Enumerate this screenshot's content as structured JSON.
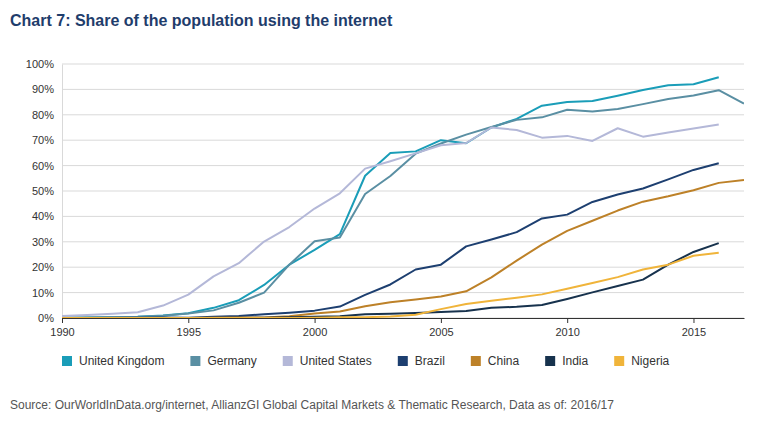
{
  "chart_data": {
    "type": "line",
    "title": "Chart 7: Share of the population using the internet",
    "source": "Source: OurWorldInData.org/internet, AllianzGI Global Capital Markets & Thematic Research, Data as of: 2016/17",
    "x": [
      1990,
      1991,
      1992,
      1993,
      1994,
      1995,
      1996,
      1997,
      1998,
      1999,
      2000,
      2001,
      2002,
      2003,
      2004,
      2005,
      2006,
      2007,
      2008,
      2009,
      2010,
      2011,
      2012,
      2013,
      2014,
      2015,
      2016,
      2017
    ],
    "xlim": [
      1990,
      2017
    ],
    "xticks": [
      1990,
      1995,
      2000,
      2005,
      2010,
      2015
    ],
    "ylim": [
      0,
      100
    ],
    "yticks": [
      {
        "value": 0,
        "label": "0%"
      },
      {
        "value": 10,
        "label": "10%"
      },
      {
        "value": 20,
        "label": "20%"
      },
      {
        "value": 30,
        "label": "30%"
      },
      {
        "value": 40,
        "label": "40%"
      },
      {
        "value": 50,
        "label": "50%"
      },
      {
        "value": 60,
        "label": "60%"
      },
      {
        "value": 70,
        "label": "70%"
      },
      {
        "value": 80,
        "label": "80%"
      },
      {
        "value": 90,
        "label": "90%"
      },
      {
        "value": 100,
        "label": "100%"
      }
    ],
    "grid": true,
    "legend": "bottom",
    "series": [
      {
        "name": "United Kingdom",
        "color": "#1a9db8",
        "values": [
          0.1,
          0.2,
          0.3,
          0.5,
          1,
          1.9,
          4,
          7,
          13,
          21,
          26.8,
          33,
          56,
          65,
          65.6,
          70,
          68.8,
          75,
          78.4,
          83.6,
          85,
          85.4,
          87.5,
          89.8,
          91.6,
          92,
          94.8,
          null
        ]
      },
      {
        "name": "Germany",
        "color": "#5a8fa3",
        "values": [
          0.1,
          0.2,
          0.4,
          0.5,
          0.9,
          1.8,
          3,
          6,
          10,
          21,
          30.2,
          31.7,
          48.8,
          55.9,
          64.7,
          68.7,
          72.2,
          75.2,
          78,
          79,
          82,
          81.3,
          82.3,
          84.2,
          86.2,
          87.6,
          89.7,
          84.4
        ]
      },
      {
        "name": "United States",
        "color": "#b4b8d8",
        "values": [
          0.8,
          1.2,
          1.7,
          2.3,
          4.9,
          9.2,
          16.4,
          21.6,
          30.1,
          35.8,
          43.1,
          49.1,
          58.8,
          61.7,
          64.8,
          68,
          68.9,
          75,
          74,
          71,
          71.7,
          69.7,
          74.7,
          71.4,
          73,
          74.6,
          76.2,
          null
        ]
      },
      {
        "name": "Brazil",
        "color": "#1d3f70",
        "values": [
          0,
          0,
          0,
          0.1,
          0.2,
          0.1,
          0.5,
          0.8,
          1.5,
          2.1,
          2.9,
          4.5,
          9.1,
          13.2,
          19.1,
          21,
          28.2,
          30.9,
          33.8,
          39.2,
          40.7,
          45.7,
          48.6,
          51,
          54.6,
          58.3,
          60.9,
          null
        ]
      },
      {
        "name": "China",
        "color": "#bd8128",
        "values": [
          0,
          0,
          0,
          0,
          0,
          0,
          0.1,
          0.2,
          0.2,
          0.7,
          1.8,
          2.6,
          4.6,
          6.2,
          7.3,
          8.5,
          10.5,
          16,
          22.6,
          28.9,
          34.3,
          38.3,
          42.3,
          45.8,
          47.9,
          50.3,
          53.2,
          54.3
        ]
      },
      {
        "name": "India",
        "color": "#17324d",
        "values": [
          0,
          0,
          0,
          0,
          0,
          0,
          0,
          0.1,
          0.1,
          0.3,
          0.5,
          0.7,
          1.5,
          1.7,
          2,
          2.4,
          2.8,
          4,
          4.4,
          5.1,
          7.5,
          10.1,
          12.6,
          15.1,
          21,
          26,
          29.5,
          null
        ]
      },
      {
        "name": "Nigeria",
        "color": "#f0b43a",
        "values": [
          0,
          0,
          0,
          0,
          0,
          0,
          0,
          0,
          0,
          0,
          0.1,
          0.3,
          0.3,
          0.6,
          1.3,
          3.5,
          5.5,
          6.8,
          8,
          9.3,
          11.5,
          13.8,
          16.1,
          19.1,
          21,
          24.5,
          25.7,
          null
        ]
      }
    ]
  }
}
